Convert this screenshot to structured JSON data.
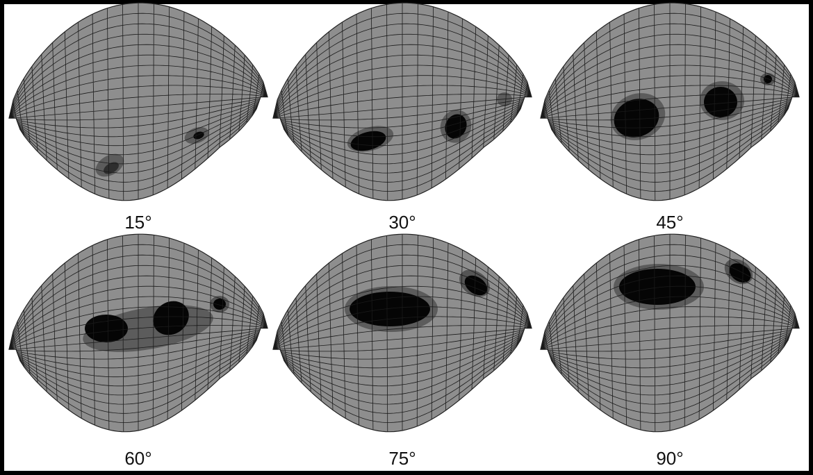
{
  "panels": [
    {
      "label": "15°"
    },
    {
      "label": "30°"
    },
    {
      "label": "45°"
    },
    {
      "label": "60°"
    },
    {
      "label": "75°"
    },
    {
      "label": "90°"
    }
  ]
}
